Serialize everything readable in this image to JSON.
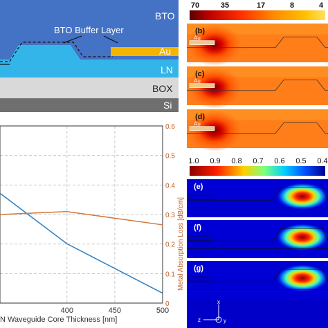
{
  "schematic": {
    "layers": {
      "bto": "BTO",
      "buffer": "BTO Buffer Layer",
      "au": "Au",
      "ln": "LN",
      "box": "BOX",
      "si": "Si"
    },
    "colors": {
      "bto": "#4472c4",
      "ln": "#33b5e9",
      "au": "#f5b400",
      "box": "#d9d9d9",
      "si": "#6f6f6f"
    }
  },
  "chart_data": {
    "type": "line",
    "xlabel": "N Waveguide Core Thickness [nm]",
    "ylabel_right": "Metal Absorption Loss [dB/cm]",
    "x_ticks": [
      "400",
      "450",
      "500"
    ],
    "xlim": [
      330,
      500
    ],
    "ylim_right": [
      0,
      0.6
    ],
    "y_ticks_right": [
      "0",
      "0.1",
      "0.2",
      "0.3",
      "0.4",
      "0.5",
      "0.6"
    ],
    "grid": true,
    "series": [
      {
        "color": "#2e7fc1",
        "x": [
          330,
          400,
          500
        ],
        "y_left_fraction": [
          0.62,
          0.335,
          0.056
        ]
      },
      {
        "color": "#d0773a",
        "x": [
          330,
          400,
          500
        ],
        "y": [
          0.3,
          0.31,
          0.265
        ]
      }
    ]
  },
  "fields": {
    "scale1": [
      "70",
      "35",
      "17",
      "8",
      "4"
    ],
    "scale2": [
      "1.0",
      "0.9",
      "0.8",
      "0.7",
      "0.6",
      "0.5",
      "0.4"
    ],
    "panels_top": [
      {
        "label": "(b)",
        "au": "Au"
      },
      {
        "label": "(c)",
        "au": "Au"
      },
      {
        "label": "(d)",
        "au": "Au"
      }
    ],
    "panels_bottom": [
      {
        "label": "(e)"
      },
      {
        "label": "(f)"
      },
      {
        "label": "(g)"
      }
    ],
    "axes": {
      "x": "x",
      "y": "y",
      "z": "z"
    }
  }
}
